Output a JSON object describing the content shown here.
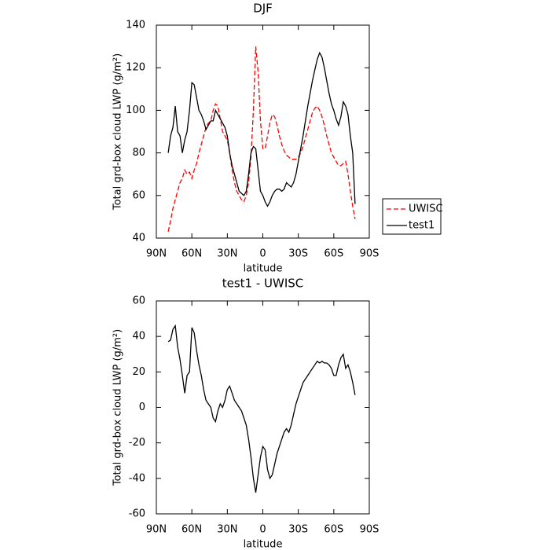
{
  "chart_data": [
    {
      "type": "line",
      "title": "DJF",
      "x_label": "latitude",
      "y_label": "Total grd-box cloud LWP (g/m²)",
      "x": [
        80,
        78,
        76,
        74,
        72,
        70,
        68,
        66,
        64,
        62,
        60,
        58,
        56,
        54,
        52,
        50,
        48,
        46,
        44,
        42,
        40,
        38,
        36,
        34,
        32,
        30,
        28,
        26,
        24,
        22,
        20,
        18,
        16,
        14,
        12,
        10,
        8,
        6,
        4,
        2,
        0,
        -2,
        -4,
        -6,
        -8,
        -10,
        -12,
        -14,
        -16,
        -18,
        -20,
        -22,
        -24,
        -26,
        -28,
        -30,
        -32,
        -34,
        -36,
        -38,
        -40,
        -42,
        -44,
        -46,
        -48,
        -50,
        -52,
        -54,
        -56,
        -58,
        -60,
        -62,
        -64,
        -66,
        -68,
        -70,
        -72,
        -74,
        -76,
        -78
      ],
      "series": [
        {
          "name": "UWISC",
          "color": "#ff0000",
          "dash": "dashed",
          "values": [
            43,
            48,
            54,
            58,
            62,
            66,
            68,
            72,
            70,
            71,
            68,
            72,
            75,
            80,
            84,
            88,
            92,
            94,
            95,
            100,
            103,
            102,
            96,
            90,
            88,
            86,
            80,
            72,
            66,
            62,
            60,
            58,
            57,
            60,
            66,
            78,
            100,
            130,
            118,
            95,
            82,
            82,
            88,
            94,
            98,
            97,
            93,
            88,
            84,
            81,
            79,
            78,
            77,
            77,
            77,
            78,
            80,
            83,
            87,
            91,
            95,
            99,
            101,
            102,
            100,
            97,
            93,
            88,
            84,
            80,
            78,
            76,
            74,
            74,
            75,
            76,
            70,
            62,
            55,
            49
          ]
        },
        {
          "name": "test1",
          "color": "#000000",
          "dash": "solid",
          "values": [
            80,
            88,
            92,
            102,
            90,
            88,
            80,
            86,
            90,
            100,
            113,
            112,
            106,
            100,
            98,
            95,
            91,
            93,
            95,
            95,
            100,
            98,
            96,
            94,
            92,
            88,
            80,
            74,
            70,
            66,
            62,
            61,
            60,
            62,
            70,
            80,
            83,
            82,
            72,
            62,
            60,
            57,
            55,
            57,
            60,
            62,
            63,
            63,
            62,
            63,
            66,
            65,
            64,
            66,
            70,
            76,
            82,
            88,
            95,
            102,
            108,
            114,
            119,
            124,
            127,
            125,
            120,
            114,
            108,
            103,
            100,
            96,
            93,
            97,
            104,
            102,
            98,
            88,
            80,
            56
          ]
        }
      ],
      "xlim": [
        90,
        -90
      ],
      "xticks": [
        {
          "value": 90,
          "label": "90N"
        },
        {
          "value": 60,
          "label": "60N"
        },
        {
          "value": 30,
          "label": "30N"
        },
        0,
        {
          "value": -30,
          "label": "30S"
        },
        {
          "value": -60,
          "label": "60S"
        },
        {
          "value": -90,
          "label": "90S"
        }
      ],
      "ylim": [
        40,
        140
      ],
      "yticks": [
        40,
        60,
        80,
        100,
        120,
        140
      ],
      "legend": "outside-right"
    },
    {
      "type": "line",
      "title": "test1 - UWISC",
      "x_label": "latitude",
      "y_label": "Total grd-box cloud LWP (g/m²)",
      "x": [
        80,
        78,
        76,
        74,
        72,
        70,
        68,
        66,
        64,
        62,
        60,
        58,
        56,
        54,
        52,
        50,
        48,
        46,
        44,
        42,
        40,
        38,
        36,
        34,
        32,
        30,
        28,
        26,
        24,
        22,
        20,
        18,
        16,
        14,
        12,
        10,
        8,
        6,
        4,
        2,
        0,
        -2,
        -4,
        -6,
        -8,
        -10,
        -12,
        -14,
        -16,
        -18,
        -20,
        -22,
        -24,
        -26,
        -28,
        -30,
        -32,
        -34,
        -36,
        -38,
        -40,
        -42,
        -44,
        -46,
        -48,
        -50,
        -52,
        -54,
        -56,
        -58,
        -60,
        -62,
        -64,
        -66,
        -68,
        -70,
        -72,
        -74,
        -76,
        -78
      ],
      "color": "#000000",
      "values": [
        37,
        38,
        44,
        46,
        34,
        27,
        18,
        8,
        18,
        20,
        45,
        42,
        32,
        24,
        18,
        10,
        4,
        2,
        0,
        -6,
        -8,
        -2,
        2,
        0,
        4,
        10,
        12,
        8,
        4,
        2,
        0,
        -2,
        -6,
        -10,
        -18,
        -28,
        -40,
        -48,
        -38,
        -28,
        -22,
        -24,
        -35,
        -40,
        -38,
        -32,
        -26,
        -22,
        -18,
        -14,
        -12,
        -14,
        -10,
        -4,
        2,
        6,
        10,
        14,
        16,
        18,
        20,
        22,
        24,
        26,
        25,
        26,
        25,
        25,
        24,
        22,
        18,
        18,
        24,
        28,
        30,
        22,
        24,
        20,
        14,
        7
      ],
      "xlim": [
        90,
        -90
      ],
      "xticks": [
        {
          "value": 90,
          "label": "90N"
        },
        {
          "value": 60,
          "label": "60N"
        },
        {
          "value": 30,
          "label": "30N"
        },
        0,
        {
          "value": -30,
          "label": "30S"
        },
        {
          "value": -60,
          "label": "60S"
        },
        {
          "value": -90,
          "label": "90S"
        }
      ],
      "ylim": [
        -60,
        60
      ],
      "yticks": [
        -60,
        -40,
        -20,
        0,
        20,
        40,
        60
      ]
    }
  ]
}
